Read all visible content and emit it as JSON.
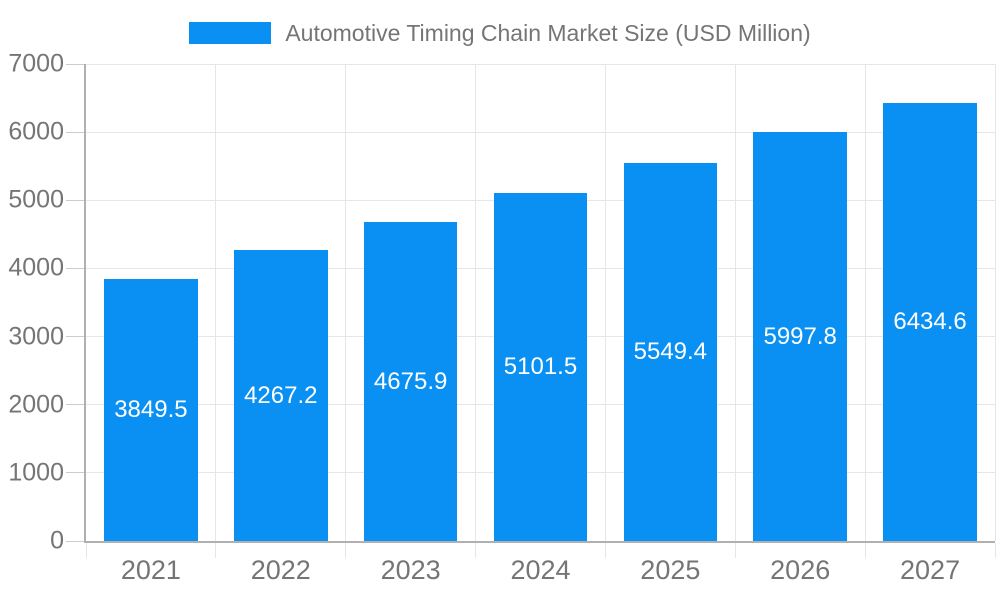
{
  "chart_data": {
    "type": "bar",
    "title": "Automotive Timing Chain Market Size (USD Million)",
    "legend": {
      "position": "top",
      "label": "Automotive Timing Chain Market Size (USD Million)"
    },
    "categories": [
      "2021",
      "2022",
      "2023",
      "2024",
      "2025",
      "2026",
      "2027"
    ],
    "values": [
      3849.5,
      4267.2,
      4675.9,
      5101.5,
      5549.4,
      5997.8,
      6434.6
    ],
    "value_labels": [
      "3849.5",
      "4267.2",
      "4675.9",
      "5101.5",
      "5549.4",
      "5997.8",
      "6434.6"
    ],
    "xlabel": "",
    "ylabel": "",
    "ylim": [
      0,
      7000
    ],
    "yticks": [
      0,
      1000,
      2000,
      3000,
      4000,
      5000,
      6000,
      7000
    ],
    "ytick_labels": [
      "0",
      "1000",
      "2000",
      "3000",
      "4000",
      "5000",
      "6000",
      "7000"
    ],
    "grid": true,
    "bar_width_fraction": 0.72,
    "colors": {
      "bar": "#0a90f2",
      "grid": "#e6e6e6",
      "axis": "#b0b0b0",
      "ytick_mark": "#cccccc",
      "xtick_mark": "#e6e6e6",
      "axis_text": "#757575",
      "legend_text": "#757575",
      "value_label_text": "#ffffff",
      "background": "#ffffff"
    }
  }
}
